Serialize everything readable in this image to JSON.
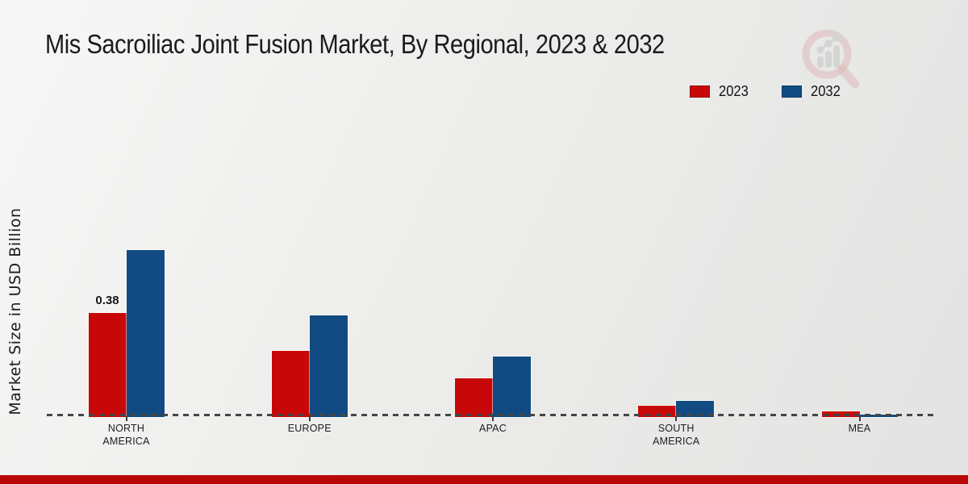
{
  "chart_data": {
    "type": "bar",
    "title": "Mis Sacroiliac Joint Fusion Market, By Regional, 2023 & 2032",
    "ylabel": "Market Size in USD Billion",
    "xlabel": "",
    "categories": [
      "NORTH AMERICA",
      "EUROPE",
      "APAC",
      "SOUTH AMERICA",
      "MEA"
    ],
    "series": [
      {
        "name": "2023",
        "color": "#c80808",
        "values": [
          0.38,
          0.24,
          0.14,
          0.04,
          0.02
        ]
      },
      {
        "name": "2032",
        "color": "#114b82",
        "values": [
          0.61,
          0.37,
          0.22,
          0.06,
          0.01
        ]
      }
    ],
    "ylim": [
      0,
      0.65
    ],
    "grid": false,
    "axis_style": "dashed-baseline-only",
    "legend_position": "top-right",
    "annotations": [
      {
        "series": "2023",
        "category": "NORTH AMERICA",
        "text": "0.38"
      }
    ]
  },
  "footer": {
    "color": "#b80708"
  },
  "logo": {
    "icon": "bar-chart-magnifier-logo",
    "ring_color": "#d49494",
    "bars_color": "#c5c5c5"
  }
}
